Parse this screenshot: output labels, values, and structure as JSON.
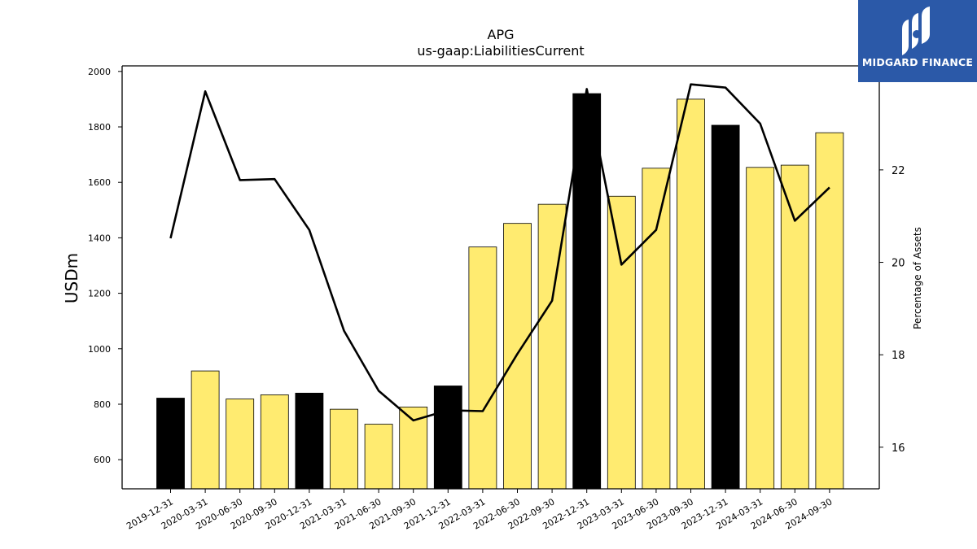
{
  "chart_data": {
    "type": "bar",
    "title": "APG",
    "subtitle": "us-gaap:LiabilitiesCurrent",
    "ylabel": "USDm",
    "y2label": "Percentage of Assets",
    "categories": [
      "2019-12-31",
      "2020-03-31",
      "2020-06-30",
      "2020-09-30",
      "2020-12-31",
      "2021-03-31",
      "2021-06-30",
      "2021-09-30",
      "2021-12-31",
      "2022-03-31",
      "2022-06-30",
      "2022-09-30",
      "2022-12-31",
      "2023-03-31",
      "2023-06-30",
      "2023-09-30",
      "2023-12-31",
      "2024-03-31",
      "2024-06-30",
      "2024-09-30"
    ],
    "ylim": [
      495,
      2020
    ],
    "y2lim": [
      15.1,
      24.25
    ],
    "yticks": [
      600,
      800,
      1000,
      1200,
      1400,
      1600,
      1800,
      2000
    ],
    "y2ticks": [
      16,
      18,
      20,
      22
    ],
    "series": [
      {
        "type": "bar",
        "values": [
          822,
          920,
          819,
          834,
          840,
          782,
          728,
          790,
          866,
          1367,
          1452,
          1521,
          1920,
          1550,
          1651,
          1900,
          1806,
          1654,
          1662,
          1779
        ],
        "colors": [
          "#000000",
          "#ffeb70",
          "#ffeb70",
          "#ffeb70",
          "#000000",
          "#ffeb70",
          "#ffeb70",
          "#ffeb70",
          "#000000",
          "#ffeb70",
          "#ffeb70",
          "#ffeb70",
          "#000000",
          "#ffeb70",
          "#ffeb70",
          "#ffeb70",
          "#000000",
          "#ffeb70",
          "#ffeb70",
          "#ffeb70"
        ]
      },
      {
        "type": "line",
        "axis": "right",
        "color": "#000000",
        "values": [
          20.52,
          23.7,
          21.78,
          21.8,
          20.7,
          18.52,
          17.22,
          16.58,
          16.8,
          16.78,
          18.02,
          19.17,
          23.75,
          19.95,
          20.7,
          23.85,
          23.78,
          23.0,
          20.9,
          21.62
        ]
      }
    ],
    "grid": false,
    "legend": "none"
  },
  "logo": {
    "text": "MIDGARD FINANCE",
    "bg": "#2b59a8"
  }
}
